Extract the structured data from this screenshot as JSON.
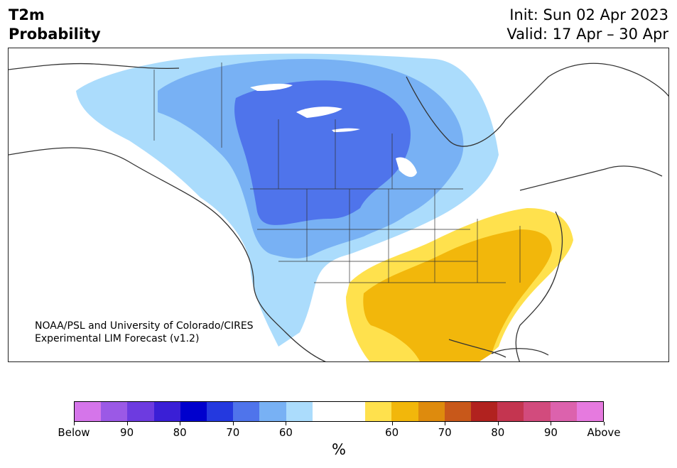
{
  "title": {
    "left_line1": "T2m",
    "left_line2": "Probability",
    "right_line1": "Init: Sun 02 Apr 2023",
    "right_line2": "Valid: 17 Apr – 30 Apr"
  },
  "credit": {
    "line1": "NOAA/PSL and University of Colorado/CIRES",
    "line2": "Experimental LIM Forecast (v1.2)"
  },
  "colorbar": {
    "unit": "%",
    "colors": [
      "#d575ea",
      "#9b59e6",
      "#6d3be0",
      "#3a1fd6",
      "#0000cd",
      "#2439df",
      "#4f74eb",
      "#78b1f4",
      "#abdcfc",
      "#ffffff",
      "#ffffff",
      "#ffe14d",
      "#f2b70b",
      "#de8b0d",
      "#c8581a",
      "#b1221f",
      "#c43550",
      "#d24b7d",
      "#dc62ad",
      "#e67adf"
    ],
    "ticks": [
      {
        "label": "Below",
        "index": 0
      },
      {
        "label": "90",
        "index": 2
      },
      {
        "label": "80",
        "index": 4
      },
      {
        "label": "70",
        "index": 6
      },
      {
        "label": "60",
        "index": 8
      },
      {
        "label": "60",
        "index": 12
      },
      {
        "label": "70",
        "index": 14
      },
      {
        "label": "80",
        "index": 16
      },
      {
        "label": "90",
        "index": 18
      },
      {
        "label": "Above",
        "index": 20
      }
    ]
  },
  "map": {
    "region": "North America",
    "colors": {
      "light_blue": "#abdcfc",
      "mid_blue": "#78b1f4",
      "dark_blue": "#4f74eb",
      "yellow": "#ffe14d",
      "orange": "#f2b70b",
      "outline": "#333333"
    }
  }
}
